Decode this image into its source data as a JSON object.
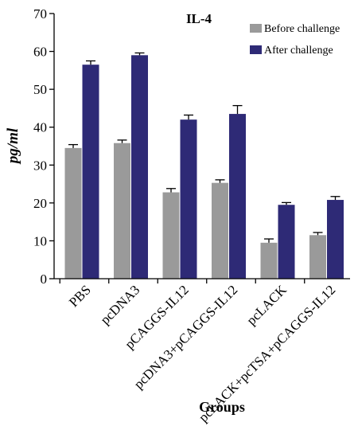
{
  "chart_data": {
    "type": "bar",
    "title": "IL-4",
    "xlabel": "Groups",
    "ylabel": "pg/ml",
    "ylim": [
      0,
      70
    ],
    "yticks": [
      0,
      10,
      20,
      30,
      40,
      50,
      60,
      70
    ],
    "grid": false,
    "legend_position": "top-right",
    "categories": [
      "PBS",
      "pcDNA3",
      "pCAGGS-IL12",
      "pcDNA3+pCAGGS-IL12",
      "pcLACK",
      "pcLACK+pcTSA+pCAGGS-IL12"
    ],
    "series": [
      {
        "name": "Before challenge",
        "color": "#9a9a9a",
        "values": [
          34.5,
          35.8,
          22.8,
          25.3,
          9.5,
          11.5
        ],
        "errors": [
          0.9,
          0.8,
          1.0,
          0.8,
          1.0,
          0.7
        ]
      },
      {
        "name": "After challenge",
        "color": "#2e2a76",
        "values": [
          56.5,
          59.0,
          42.0,
          43.5,
          19.5,
          20.8
        ],
        "errors": [
          1.0,
          0.6,
          1.2,
          2.2,
          0.6,
          0.9
        ]
      }
    ]
  }
}
